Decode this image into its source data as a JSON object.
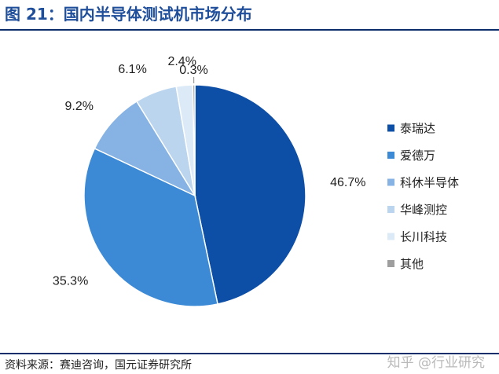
{
  "figure": {
    "title": "图 21：国内半导体测试机市场分布",
    "source": "资料来源：赛迪咨询，国元证券研究所",
    "watermark": "知乎 @行业研究"
  },
  "chart_data": {
    "type": "pie",
    "legend_position": "right",
    "slices": [
      {
        "label": "泰瑞达",
        "value": 46.7,
        "value_label": "46.7%",
        "color": "#0d4ea6"
      },
      {
        "label": "爱德万",
        "value": 35.3,
        "value_label": "35.3%",
        "color": "#3c8ad6"
      },
      {
        "label": "科休半导体",
        "value": 9.2,
        "value_label": "9.2%",
        "color": "#86b3e3"
      },
      {
        "label": "华峰测控",
        "value": 6.1,
        "value_label": "6.1%",
        "color": "#bcd5ef"
      },
      {
        "label": "长川科技",
        "value": 2.4,
        "value_label": "2.4%",
        "color": "#dceaf8"
      },
      {
        "label": "其他",
        "value": 0.3,
        "value_label": "0.3%",
        "color": "#9e9e9e"
      }
    ]
  }
}
